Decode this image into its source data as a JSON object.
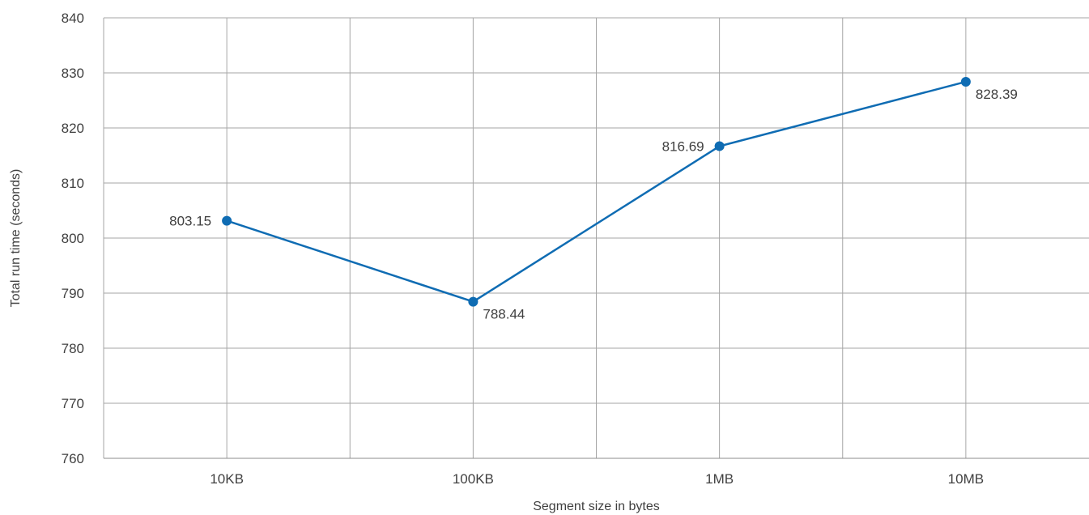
{
  "chart_data": {
    "type": "line",
    "categories": [
      "10KB",
      "100KB",
      "1MB",
      "10MB"
    ],
    "series": [
      {
        "values": [
          803.15,
          788.44,
          816.69,
          828.39
        ],
        "color": "#0f6cb3"
      }
    ],
    "data_labels": [
      "803.15",
      "788.44",
      "816.69",
      "828.39"
    ],
    "data_label_positions": [
      "left",
      "right",
      "left",
      "right"
    ],
    "title": "",
    "xlabel": "Segment size in bytes",
    "ylabel": "Total run time (seconds)",
    "ylim": [
      760,
      840
    ],
    "yticks": [
      760,
      770,
      780,
      790,
      800,
      810,
      820,
      830,
      840
    ],
    "grid": true,
    "legend": "none",
    "colors": {
      "grid": "#a6a6a6",
      "text": "#404040"
    }
  }
}
